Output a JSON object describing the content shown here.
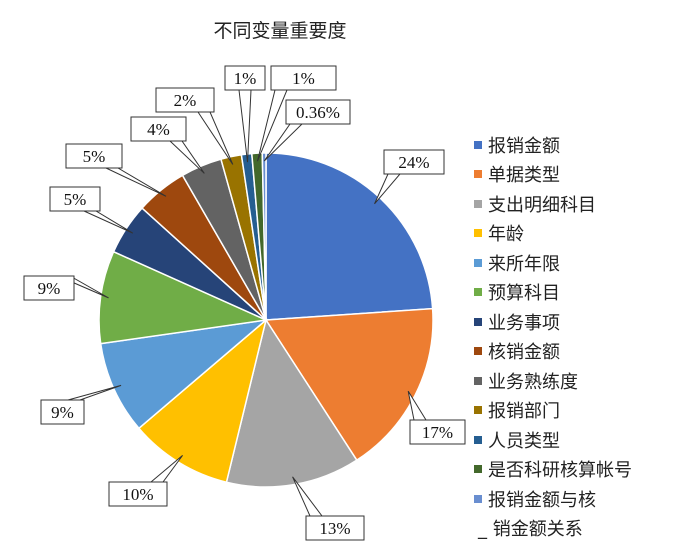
{
  "chart_data": {
    "type": "pie",
    "title": "不同变量重要度",
    "legend_position": "right",
    "slices": [
      {
        "label": "报销金额",
        "value": 24,
        "display": "24%",
        "color": "#4472C4"
      },
      {
        "label": "单据类型",
        "value": 17,
        "display": "17%",
        "color": "#ED7D31"
      },
      {
        "label": "支出明细科目",
        "value": 13,
        "display": "13%",
        "color": "#A5A5A5"
      },
      {
        "label": "年龄",
        "value": 10,
        "display": "10%",
        "color": "#FFC000"
      },
      {
        "label": "来所年限",
        "value": 9,
        "display": "9%",
        "color": "#5B9BD5"
      },
      {
        "label": "预算科目",
        "value": 9,
        "display": "9%",
        "color": "#70AD47"
      },
      {
        "label": "业务事项",
        "value": 5,
        "display": "5%",
        "color": "#264478"
      },
      {
        "label": "核销金额",
        "value": 5,
        "display": "5%",
        "color": "#9E480E"
      },
      {
        "label": "业务熟练度",
        "value": 4,
        "display": "4%",
        "color": "#636363"
      },
      {
        "label": "报销部门",
        "value": 2,
        "display": "2%",
        "color": "#997300"
      },
      {
        "label": "人员类型",
        "value": 1,
        "display": "1%",
        "color": "#255E91"
      },
      {
        "label": "是否科研核算帐号",
        "value": 1,
        "display": "1%",
        "color": "#43682B"
      },
      {
        "label": "报销金额与核",
        "value": 0.36,
        "display": "0.36%",
        "color": "#698ED0"
      }
    ],
    "legend_continuation": "_ 销金额关系"
  }
}
